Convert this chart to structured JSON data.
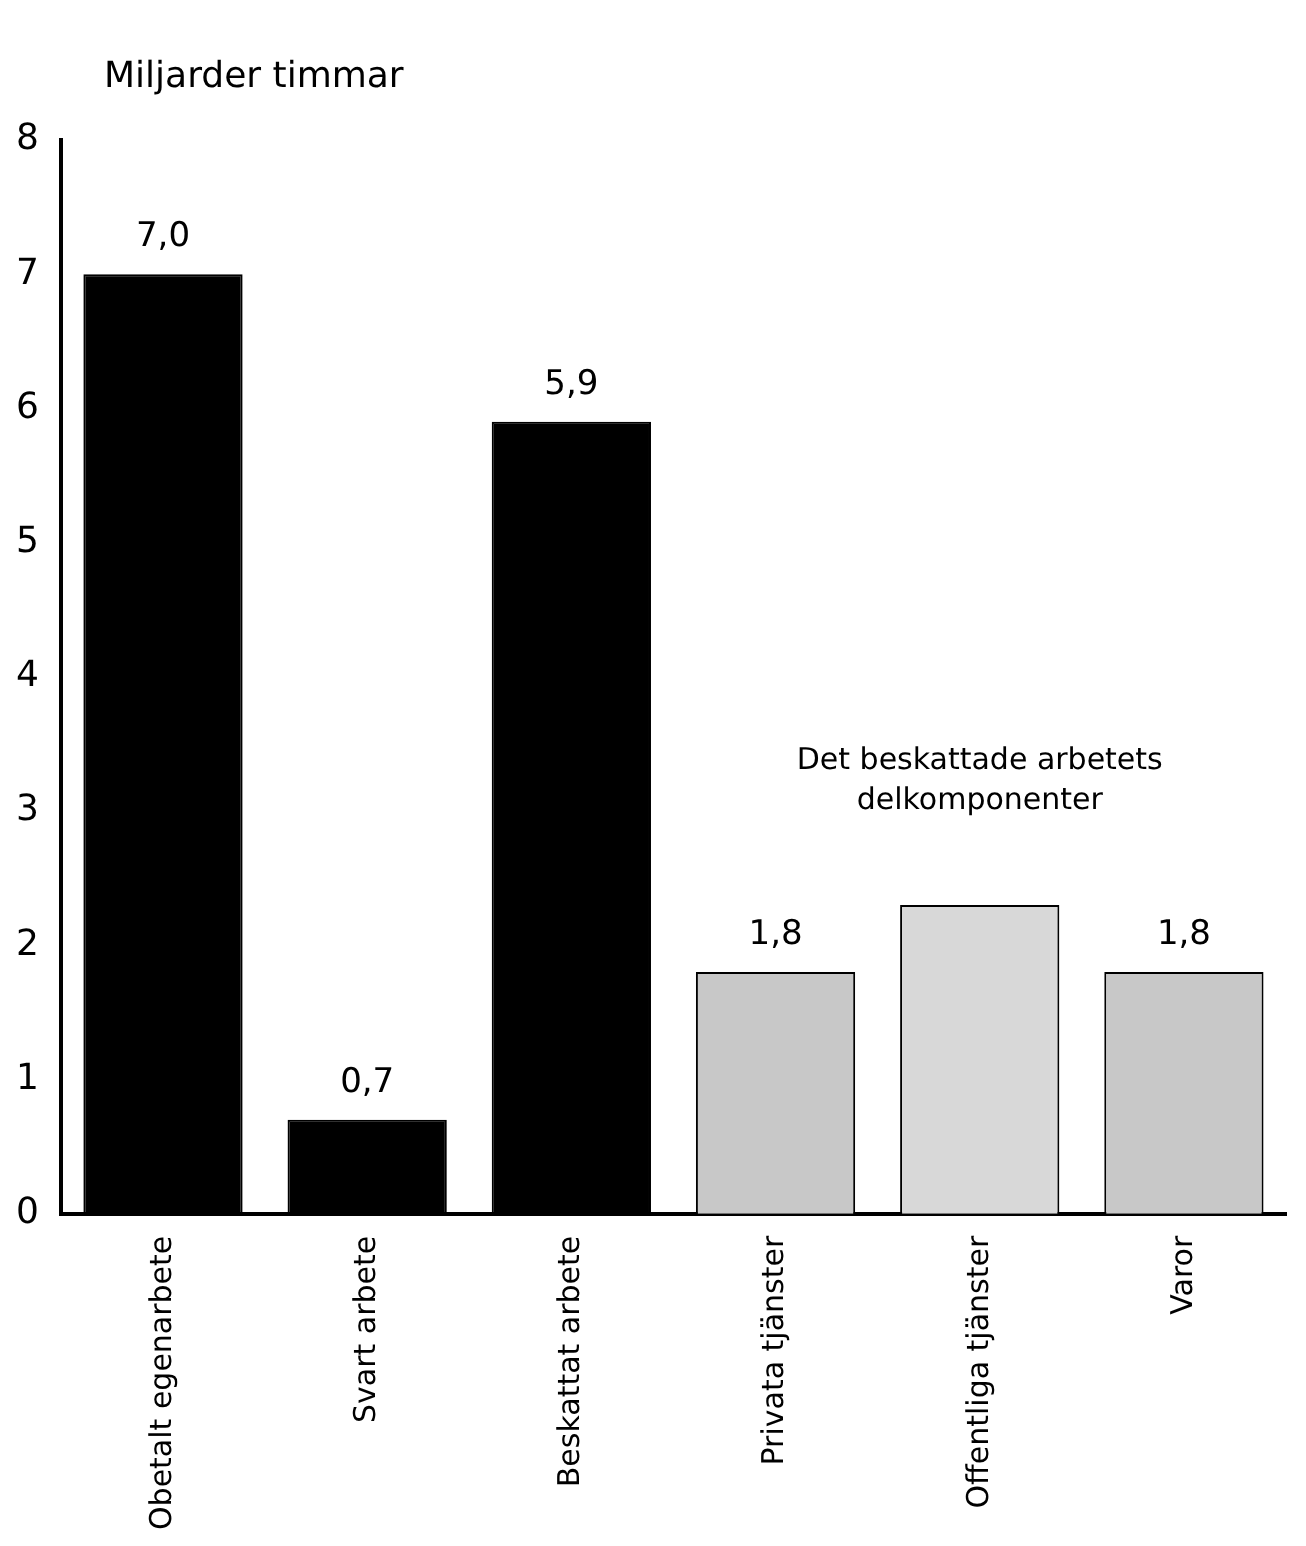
{
  "chart_data": {
    "type": "bar",
    "ylabel": "Miljarder timmar",
    "categories": [
      "Obetalt egenarbete",
      "Svart arbete",
      "Beskattat arbete",
      "Privata tjänster",
      "Offentliga tjänster",
      "Varor"
    ],
    "values": [
      7.0,
      0.7,
      5.9,
      1.8,
      2.3,
      1.8
    ],
    "colors": [
      "#000000",
      "#000000",
      "#000000",
      "#c8c8c8",
      "#d8d8d8",
      "#c8c8c8"
    ],
    "value_labels": [
      "7,0",
      "0,7",
      "5,9",
      "1,8",
      null,
      "1,8"
    ],
    "annotations": [
      "Det beskattade arbetets delkomponenter"
    ],
    "ylim": [
      0,
      8
    ],
    "yticks": [
      0,
      1,
      2,
      3,
      4,
      5,
      6,
      7,
      8
    ],
    "grid": false,
    "legend": false
  }
}
